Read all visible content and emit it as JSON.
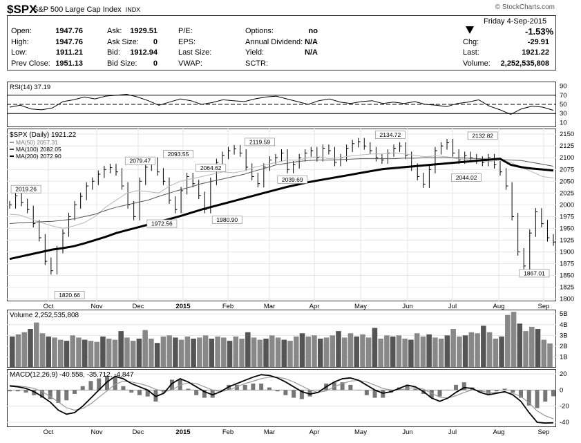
{
  "header": {
    "symbol": "$SPX",
    "name": "S&P 500 Large Cap Index",
    "exchange": "INDX",
    "watermark": "© StockCharts.com",
    "date": "Friday  4-Sep-2015"
  },
  "quote": {
    "left": [
      {
        "label": "Open:",
        "value": "1947.76"
      },
      {
        "label": "High:",
        "value": "1947.76"
      },
      {
        "label": "Low:",
        "value": "1911.21"
      },
      {
        "label": "Prev Close:",
        "value": "1951.13"
      }
    ],
    "mid": [
      {
        "label": "Ask:",
        "value": "1929.51"
      },
      {
        "label": "Ask Size:",
        "value": "0"
      },
      {
        "label": "Bid:",
        "value": "1912.94"
      },
      {
        "label": "Bid Size:",
        "value": "0"
      }
    ],
    "mid2": [
      {
        "label": "P/E:",
        "value": ""
      },
      {
        "label": "EPS:",
        "value": ""
      },
      {
        "label": "Last Size:",
        "value": ""
      },
      {
        "label": "VWAP:",
        "value": ""
      }
    ],
    "mid3": [
      {
        "label": "Options:",
        "value": "no"
      },
      {
        "label": "Annual Dividend:",
        "value": "N/A"
      },
      {
        "label": "Yield:",
        "value": "N/A"
      },
      {
        "label": "SCTR:",
        "value": ""
      }
    ],
    "change_pct": "-1.53%",
    "right": [
      {
        "label": "Chg:",
        "value": "-29.91"
      },
      {
        "label": "Last:",
        "value": "1921.22"
      },
      {
        "label": "Volume:",
        "value": "2,252,535,808"
      }
    ]
  },
  "chart_data": [
    {
      "type": "line",
      "title": "RSI(14) 37.19",
      "yticks": [
        10,
        30,
        50,
        70,
        90
      ],
      "ylim": [
        0,
        100
      ],
      "reference_lines": [
        30,
        50,
        70
      ],
      "series": [
        {
          "name": "RSI(14)",
          "values": [
            44,
            48,
            40,
            38,
            42,
            56,
            60,
            66,
            62,
            68,
            70,
            72,
            66,
            58,
            48,
            55,
            62,
            58,
            50,
            54,
            60,
            58,
            56,
            62,
            66,
            68,
            62,
            56,
            50,
            58,
            62,
            55,
            52,
            56,
            58,
            52,
            55,
            52,
            56,
            50,
            48,
            45,
            52,
            55,
            60,
            46,
            38,
            28,
            40,
            46,
            44,
            37
          ]
        }
      ]
    },
    {
      "type": "line",
      "title": "$SPX (Daily) 1921.22",
      "legend": [
        "MA(50) 2057.31",
        "MA(100) 2082.05",
        "MA(200) 2072.90"
      ],
      "x_labels": [
        "Oct",
        "Nov",
        "Dec",
        "2015",
        "Feb",
        "Mar",
        "Apr",
        "May",
        "Jun",
        "Jul",
        "Aug",
        "Sep"
      ],
      "yticks": [
        1800,
        1825,
        1850,
        1875,
        1900,
        1925,
        1950,
        1975,
        2000,
        2025,
        2050,
        2075,
        2100,
        2125,
        2150
      ],
      "ylim": [
        1795,
        2162
      ],
      "annotations": [
        {
          "label": "2019.26",
          "x": 0.03,
          "y": 2019.26
        },
        {
          "label": "1820.66",
          "x": 0.11,
          "y": 1820.66
        },
        {
          "label": "2079.47",
          "x": 0.24,
          "y": 2079.47
        },
        {
          "label": "1972.56",
          "x": 0.28,
          "y": 1972.56
        },
        {
          "label": "2093.55",
          "x": 0.31,
          "y": 2093.55
        },
        {
          "label": "2064.62",
          "x": 0.37,
          "y": 2064.62
        },
        {
          "label": "1980.90",
          "x": 0.4,
          "y": 1980.9
        },
        {
          "label": "2119.59",
          "x": 0.46,
          "y": 2119.59
        },
        {
          "label": "2039.69",
          "x": 0.52,
          "y": 2039.69
        },
        {
          "label": "2134.72",
          "x": 0.7,
          "y": 2134.72
        },
        {
          "label": "2044.02",
          "x": 0.84,
          "y": 2044.02
        },
        {
          "label": "2132.82",
          "x": 0.87,
          "y": 2132.82
        },
        {
          "label": "1867.01",
          "x": 0.965,
          "y": 1867.01
        }
      ],
      "series": [
        {
          "name": "$SPX",
          "values": [
            2000,
            2019,
            2005,
            1990,
            1960,
            1930,
            1880,
            1860,
            1905,
            1940,
            1975,
            2000,
            2018,
            2040,
            2050,
            2065,
            2075,
            2079,
            2070,
            2040,
            2000,
            1975,
            2050,
            2080,
            2093,
            2070,
            2050,
            2010,
            1990,
            2030,
            2060,
            2045,
            2020,
            1990,
            2050,
            2090,
            2105,
            2115,
            2119,
            2110,
            2080,
            2060,
            2045,
            2080,
            2095,
            2100,
            2110,
            2075,
            2085,
            2100,
            2110,
            2115,
            2100,
            2120,
            2115,
            2090,
            2100,
            2120,
            2130,
            2134,
            2125,
            2115,
            2100,
            2095,
            2110,
            2120,
            2125,
            2105,
            2080,
            2060,
            2044,
            2075,
            2115,
            2125,
            2132,
            2110,
            2095,
            2105,
            2100,
            2095,
            2090,
            2100,
            2085,
            2070,
            2040,
            1975,
            1900,
            1870,
            1940,
            1985,
            1960,
            1930,
            1921
          ]
        },
        {
          "name": "MA(50)",
          "values": [
            1980,
            1978,
            1970,
            1962,
            1955,
            1950,
            1955,
            1962,
            1975,
            1995,
            2010,
            2025,
            2030,
            2028,
            2025,
            2040,
            2050,
            2055,
            2060,
            2065,
            2070,
            2068,
            2072,
            2080,
            2085,
            2090,
            2095,
            2095,
            2100,
            2102,
            2098,
            2100,
            2104,
            2106,
            2108,
            2108,
            2110,
            2108,
            2105,
            2102,
            2104,
            2102,
            2098,
            2096,
            2094,
            2092,
            2095,
            2090,
            2080,
            2070,
            2060,
            2057
          ]
        },
        {
          "name": "MA(100)",
          "values": [
            1960,
            1962,
            1963,
            1964,
            1965,
            1967,
            1970,
            1975,
            1980,
            1988,
            1995,
            2000,
            2005,
            2010,
            2018,
            2025,
            2032,
            2038,
            2045,
            2050,
            2055,
            2060,
            2065,
            2072,
            2078,
            2085,
            2088,
            2092,
            2094,
            2095,
            2095,
            2096,
            2097,
            2098,
            2098,
            2098,
            2098,
            2099,
            2099,
            2100,
            2100,
            2100,
            2100,
            2099,
            2098,
            2097,
            2096,
            2095,
            2094,
            2090,
            2086,
            2082
          ]
        },
        {
          "name": "MA(200)",
          "values": [
            1885,
            1890,
            1895,
            1900,
            1905,
            1908,
            1912,
            1918,
            1925,
            1932,
            1940,
            1946,
            1952,
            1958,
            1964,
            1970,
            1976,
            1983,
            1990,
            1996,
            2002,
            2008,
            2014,
            2020,
            2026,
            2032,
            2038,
            2043,
            2048,
            2052,
            2056,
            2060,
            2064,
            2068,
            2072,
            2076,
            2078,
            2080,
            2082,
            2084,
            2086,
            2088,
            2090,
            2092,
            2094,
            2096,
            2098,
            2085,
            2080,
            2077,
            2075,
            2072.9
          ]
        }
      ]
    },
    {
      "type": "bar",
      "title": "Volume 2,252,535,808",
      "yticks": [
        "1B",
        "2B",
        "3B",
        "4B",
        "5B"
      ],
      "ylim": [
        0,
        5.4
      ],
      "values": [
        2.9,
        3.1,
        3.3,
        3.6,
        4.2,
        3.2,
        2.9,
        2.8,
        2.6,
        2.5,
        3.0,
        2.8,
        2.6,
        2.5,
        2.4,
        2.9,
        2.7,
        2.6,
        3.4,
        2.8,
        2.5,
        2.7,
        3.5,
        2.7,
        2.3,
        2.9,
        3.0,
        2.8,
        2.6,
        2.9,
        2.7,
        2.8,
        3.0,
        2.7,
        2.9,
        2.8,
        2.5,
        2.9,
        2.7,
        3.3,
        2.8,
        2.6,
        2.7,
        3.0,
        2.8,
        2.6,
        2.5,
        2.9,
        3.2,
        2.9,
        3.0,
        2.7,
        2.8,
        3.0,
        3.4,
        2.8,
        3.2,
        2.9,
        3.1,
        2.8,
        3.7,
        2.7,
        3.0,
        2.9,
        3.0,
        2.7,
        2.6,
        3.2,
        2.9,
        3.1,
        2.8,
        2.7,
        3.0,
        3.6,
        2.9,
        3.0,
        3.3,
        3.2,
        3.9,
        3.3,
        2.7,
        2.9,
        4.9,
        5.2,
        4.1,
        3.4,
        3.8,
        3.6,
        2.6,
        2.25
      ]
    },
    {
      "type": "line",
      "title": "MACD(12,26,9) -40.558, -35.712, -4.847",
      "yticks": [
        -40,
        -20,
        0,
        20
      ],
      "ylim": [
        -46,
        26
      ],
      "series": [
        {
          "name": "MACD",
          "values": [
            5,
            4,
            2,
            -2,
            -8,
            -15,
            -25,
            -30,
            -28,
            -20,
            -10,
            0,
            10,
            17,
            14,
            8,
            4,
            0,
            -8,
            -4,
            8,
            14,
            10,
            4,
            -2,
            -6,
            -2,
            4,
            8,
            12,
            16,
            19,
            18,
            15,
            10,
            4,
            -2,
            -5,
            -3,
            4,
            10,
            14,
            15,
            12,
            6,
            0,
            -4,
            -2,
            2,
            6,
            4,
            -2,
            -10,
            -14,
            -10,
            -3,
            3,
            2,
            -3,
            -6,
            -4,
            -2,
            -6,
            -14,
            -28,
            -40,
            -41,
            -40.558
          ]
        },
        {
          "name": "Signal",
          "values": [
            6,
            5,
            4,
            2,
            -2,
            -8,
            -15,
            -22,
            -25,
            -23,
            -17,
            -9,
            -1,
            7,
            11,
            10,
            8,
            5,
            1,
            -2,
            0,
            6,
            9,
            8,
            4,
            0,
            -2,
            0,
            4,
            8,
            11,
            14,
            16,
            16,
            14,
            10,
            5,
            0,
            -3,
            -1,
            4,
            8,
            11,
            12,
            10,
            6,
            2,
            0,
            0,
            2,
            3,
            1,
            -4,
            -9,
            -10,
            -7,
            -3,
            0,
            -1,
            -3,
            -3,
            -3,
            -4,
            -8,
            -16,
            -26,
            -32,
            -35.712
          ]
        }
      ],
      "histogram_final": -4.847
    }
  ]
}
